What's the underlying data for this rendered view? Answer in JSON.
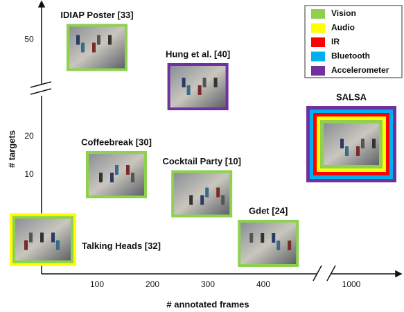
{
  "chart_data": {
    "type": "scatter",
    "xlabel": "# annotated frames",
    "ylabel": "# targets",
    "xlim": [
      0,
      1090
    ],
    "xbreak": [
      500,
      950
    ],
    "xticks": [
      100,
      200,
      300,
      400,
      1000
    ],
    "ylim": [
      -16,
      54
    ],
    "ybreak": [
      26,
      44
    ],
    "yticks": [
      10,
      20,
      50
    ],
    "legend": "top-right",
    "sensors": [
      {
        "name": "Vision",
        "color": "#8fd14f"
      },
      {
        "name": "Audio",
        "color": "#ffff00"
      },
      {
        "name": "IR",
        "color": "#ff0000"
      },
      {
        "name": "Bluetooth",
        "color": "#00b0f0"
      },
      {
        "name": "Accelerometer",
        "color": "#7030a0"
      }
    ],
    "points": [
      {
        "label": "IDIAP Poster [33]",
        "x": 100,
        "y": 49,
        "sensors": [
          0
        ]
      },
      {
        "label": "Hung et al. [40]",
        "x": 282,
        "y": 44,
        "sensors": [
          4
        ]
      },
      {
        "label": "SALSA",
        "x": 1000,
        "y": 18,
        "sensors": [
          4,
          3,
          2,
          1,
          0
        ]
      },
      {
        "label": "Coffeebreak [30]",
        "x": 135,
        "y": 10,
        "sensors": [
          0
        ]
      },
      {
        "label": "Cocktail Party [10]",
        "x": 289,
        "y": 5,
        "sensors": [
          0
        ]
      },
      {
        "label": "Gdet [24]",
        "x": 409,
        "y": -8,
        "sensors": [
          0
        ]
      },
      {
        "label": "Talking Heads [32]",
        "x": 2.5,
        "y": -7,
        "sensors": [
          1,
          0
        ]
      }
    ]
  }
}
